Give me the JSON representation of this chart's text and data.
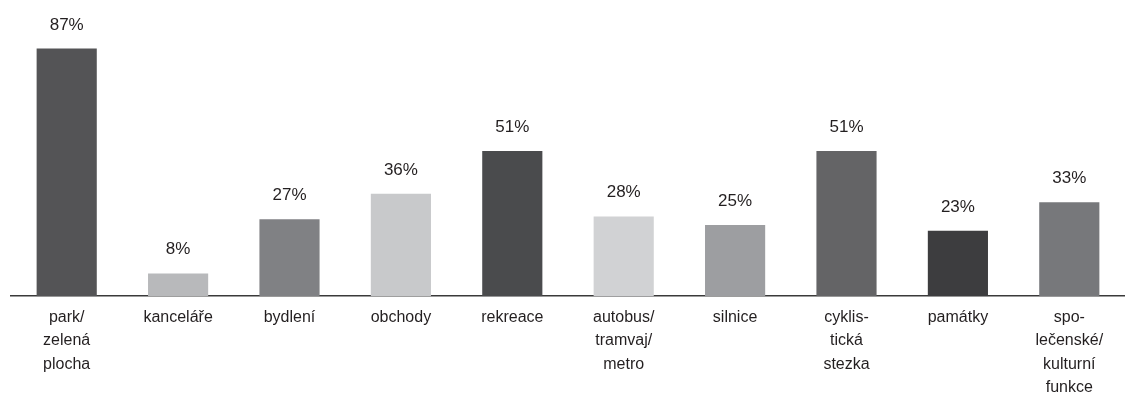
{
  "chart_data": {
    "type": "bar",
    "categories": [
      "park/\nzelená\nplocha",
      "kanceláře",
      "bydlení",
      "obchody",
      "rekreace",
      "autobus/\ntramvaj/\nmetro",
      "silnice",
      "cyklis-\ntická\nstezka",
      "památky",
      "spo-\nlečenské/\nkulturní\nfunkce"
    ],
    "values": [
      87,
      8,
      27,
      36,
      51,
      28,
      25,
      51,
      23,
      33
    ],
    "colors": [
      "#545456",
      "#b8b9bb",
      "#808184",
      "#c8c9cb",
      "#4a4b4d",
      "#d1d2d4",
      "#9d9ea1",
      "#646466",
      "#3d3d3f",
      "#77787b"
    ],
    "value_labels": [
      "87%",
      "8%",
      "27%",
      "36%",
      "51%",
      "28%",
      "25%",
      "51%",
      "23%",
      "33%"
    ],
    "tick_labels": "x"
  }
}
